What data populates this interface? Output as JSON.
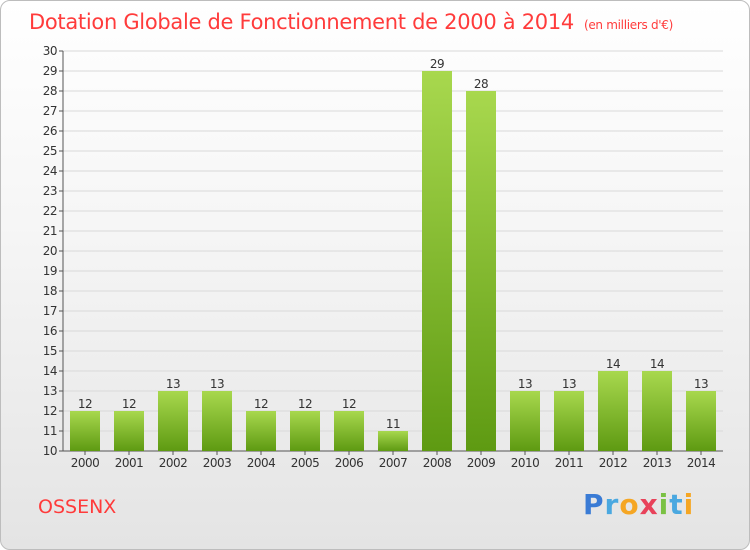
{
  "header": {
    "title": "Dotation Globale de Fonctionnement de 2000 à 2014",
    "subtitle": "(en milliers d'€)"
  },
  "footer": {
    "commune": "OSSENX",
    "logo_text": "Proxiti"
  },
  "colors": {
    "title": "#ff3b3b",
    "bar_light": "#a8d84e",
    "bar_dark": "#5e9a12"
  },
  "chart_data": {
    "type": "bar",
    "title": "Dotation Globale de Fonctionnement de 2000 à 2014",
    "subtitle": "(en milliers d'€)",
    "xlabel": "",
    "ylabel": "",
    "categories": [
      "2000",
      "2001",
      "2002",
      "2003",
      "2004",
      "2005",
      "2006",
      "2007",
      "2008",
      "2009",
      "2010",
      "2011",
      "2012",
      "2013",
      "2014"
    ],
    "values": [
      12,
      12,
      13,
      13,
      12,
      12,
      12,
      11,
      29,
      28,
      13,
      13,
      14,
      14,
      13
    ],
    "ylim": [
      10,
      30
    ],
    "yticks": [
      10,
      11,
      12,
      13,
      14,
      15,
      16,
      17,
      18,
      19,
      20,
      21,
      22,
      23,
      24,
      25,
      26,
      27,
      28,
      29,
      30
    ],
    "grid": true,
    "legend": "none",
    "data_labels": true
  }
}
